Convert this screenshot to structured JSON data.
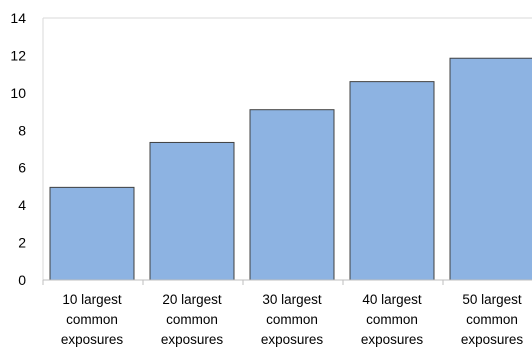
{
  "chart_data": {
    "type": "bar",
    "categories": [
      "10 largest common exposures",
      "20 largest common exposures",
      "30 largest common exposures",
      "40 largest common exposures",
      "50 largest common exposures"
    ],
    "category_lines": [
      [
        "10 largest",
        "common",
        "exposures"
      ],
      [
        "20 largest",
        "common",
        "exposures"
      ],
      [
        "30 largest",
        "common",
        "exposures"
      ],
      [
        "40 largest",
        "common",
        "exposures"
      ],
      [
        "50 largest",
        "common",
        "exposures"
      ]
    ],
    "values": [
      4.95,
      7.35,
      9.1,
      10.6,
      11.85
    ],
    "ylim": [
      0,
      14
    ],
    "yticks": [
      0,
      2,
      4,
      6,
      8,
      10,
      12,
      14
    ],
    "title": "",
    "xlabel": "",
    "ylabel": "",
    "grid": false,
    "bar_color": "#8db3e2",
    "bar_edge_color": "#404040"
  }
}
